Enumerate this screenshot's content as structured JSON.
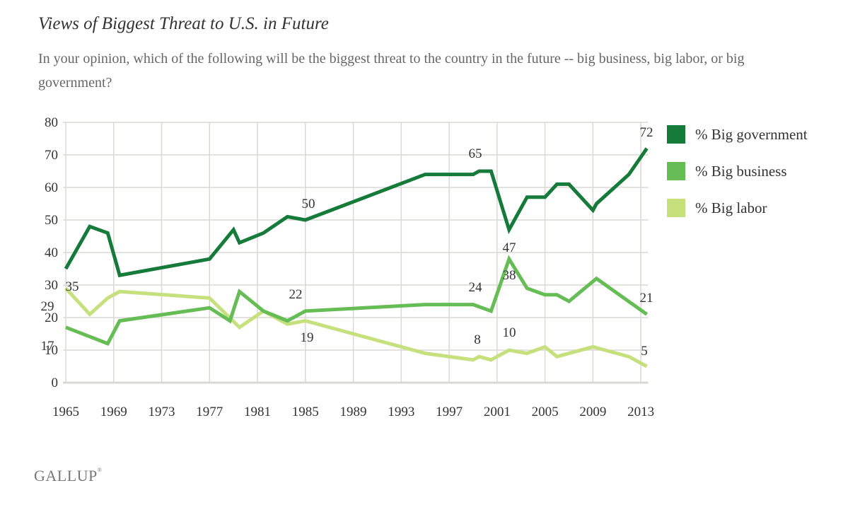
{
  "header": {
    "title": "Views of Biggest Threat to U.S. in Future",
    "subtitle": "In your opinion, which of the following will be the biggest threat to the country in the future -- big business, big labor, or big government?"
  },
  "brand": {
    "name": "GALLUP",
    "mark": "®"
  },
  "colors": {
    "government": "#167a3a",
    "business": "#66bd55",
    "labor": "#c5e07c",
    "grid": "#d9d8d3",
    "text": "#333333"
  },
  "chart_data": {
    "type": "line",
    "title": "Views of Biggest Threat to U.S. in Future",
    "xlabel": "",
    "ylabel": "",
    "ylim": [
      0,
      80
    ],
    "yticks": [
      0,
      10,
      20,
      30,
      40,
      50,
      60,
      70,
      80
    ],
    "xlim": [
      1965,
      2013.5
    ],
    "xticks": [
      1965,
      1969,
      1973,
      1977,
      1981,
      1985,
      1989,
      1993,
      1997,
      2001,
      2005,
      2009,
      2013
    ],
    "grid": true,
    "legend_position": "right",
    "series": [
      {
        "name": "% Big government",
        "key": "government",
        "x": [
          1965,
          1967,
          1968.5,
          1969.5,
          1977,
          1979,
          1979.5,
          1981.5,
          1983.5,
          1985,
          1995,
          1999,
          1999.5,
          2000.5,
          2002,
          2003.5,
          2005,
          2006,
          2007,
          2009,
          2009.3,
          2012,
          2013.5
        ],
        "values": [
          35,
          48,
          46,
          33,
          38,
          47,
          43,
          46,
          51,
          50,
          64,
          64,
          65,
          65,
          47,
          57,
          57,
          61,
          61,
          53,
          55,
          64,
          72
        ]
      },
      {
        "name": "% Big business",
        "key": "business",
        "x": [
          1965,
          1968.5,
          1969.5,
          1977,
          1978.7,
          1979.5,
          1981.5,
          1983.5,
          1985,
          1995,
          1999,
          2000.5,
          2002,
          2003.5,
          2005,
          2006,
          2007,
          2009.3,
          2013.5
        ],
        "values": [
          17,
          12,
          19,
          23,
          19,
          28,
          22,
          19,
          22,
          24,
          24,
          22,
          38,
          29,
          27,
          27,
          25,
          32,
          21
        ]
      },
      {
        "name": "% Big labor",
        "key": "labor",
        "x": [
          1965,
          1967,
          1968.5,
          1969.5,
          1977,
          1979.5,
          1981.5,
          1983.5,
          1985,
          1995,
          1999,
          1999.5,
          2000.5,
          2002,
          2003.5,
          2005,
          2006,
          2007,
          2009,
          2010,
          2012,
          2013.5
        ],
        "values": [
          29,
          21,
          26,
          28,
          26,
          17,
          22,
          18,
          19,
          9,
          7,
          8,
          7,
          10,
          9,
          11,
          8,
          9,
          11,
          10,
          8,
          5
        ]
      }
    ],
    "annotations": [
      {
        "text": "35",
        "series": "government",
        "x": 1965,
        "value": 35
      },
      {
        "text": "29",
        "series": "labor",
        "x": 1965,
        "value": 29
      },
      {
        "text": "17",
        "series": "business",
        "x": 1965,
        "value": 17
      },
      {
        "text": "50",
        "series": "government",
        "x": 1985,
        "value": 50
      },
      {
        "text": "22",
        "series": "business",
        "x": 1985,
        "value": 22
      },
      {
        "text": "19",
        "series": "labor",
        "x": 1985,
        "value": 19
      },
      {
        "text": "65",
        "series": "government",
        "x": 1999.5,
        "value": 65
      },
      {
        "text": "24",
        "series": "business",
        "x": 1999,
        "value": 24
      },
      {
        "text": "8",
        "series": "labor",
        "x": 1999.5,
        "value": 8
      },
      {
        "text": "47",
        "series": "government",
        "x": 2002,
        "value": 47
      },
      {
        "text": "38",
        "series": "business",
        "x": 2002,
        "value": 38
      },
      {
        "text": "10",
        "series": "labor",
        "x": 2002,
        "value": 10
      },
      {
        "text": "72",
        "series": "government",
        "x": 2013.5,
        "value": 72
      },
      {
        "text": "21",
        "series": "business",
        "x": 2013.5,
        "value": 21
      },
      {
        "text": "5",
        "series": "labor",
        "x": 2013.5,
        "value": 5
      }
    ]
  }
}
